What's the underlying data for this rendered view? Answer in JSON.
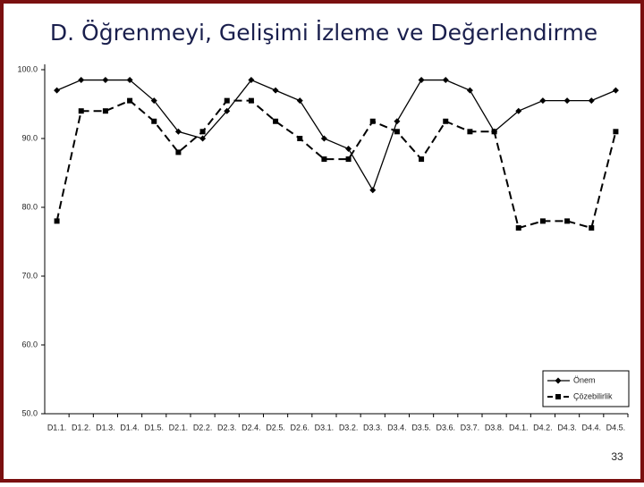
{
  "title": "D. Öğrenmeyi, Gelişimi İzleme ve Değerlendirme",
  "page_number": "33",
  "chart_data": {
    "type": "line",
    "categories": [
      "D1.1.",
      "D1.2.",
      "D1.3.",
      "D1.4.",
      "D1.5.",
      "D2.1.",
      "D2.2.",
      "D2.3.",
      "D2.4.",
      "D2.5.",
      "D2.6.",
      "D3.1.",
      "D3.2.",
      "D3.3.",
      "D3.4.",
      "D3.5.",
      "D3.6.",
      "D3.7.",
      "D3.8.",
      "D4.1.",
      "D4.2.",
      "D4.3.",
      "D4.4.",
      "D4.5."
    ],
    "series": [
      {
        "name": "Önem",
        "color": "#000000",
        "line_style": "solid",
        "marker": "diamond",
        "values": [
          97,
          98.5,
          98.5,
          98.5,
          95.5,
          91,
          90,
          94,
          98.5,
          97,
          95.5,
          90,
          88.5,
          82.5,
          92.5,
          98.5,
          98.5,
          97,
          91,
          94,
          95.5,
          95.5,
          95.5,
          97
        ]
      },
      {
        "name": "Çözebilirlik",
        "color": "#000000",
        "line_style": "dashed",
        "marker": "square",
        "values": [
          78,
          94,
          94,
          95.5,
          92.5,
          88,
          91,
          95.5,
          95.5,
          92.5,
          90,
          87,
          87,
          92.5,
          91,
          87,
          92.5,
          91,
          91,
          77,
          78,
          78,
          77,
          91
        ]
      }
    ],
    "ylim": [
      50,
      100
    ],
    "yticks": [
      {
        "value": 50,
        "label": "50.0"
      },
      {
        "value": 60,
        "label": "60.0"
      },
      {
        "value": 70,
        "label": "70.0"
      },
      {
        "value": 80,
        "label": "80.0"
      },
      {
        "value": 90,
        "label": "90.0"
      },
      {
        "value": 100,
        "label": "100.0"
      }
    ],
    "legend": "lower right"
  }
}
